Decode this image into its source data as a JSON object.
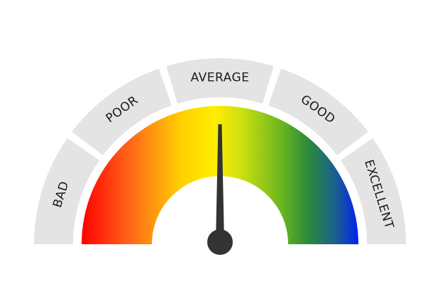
{
  "gauge": {
    "segments": [
      {
        "key": "bad",
        "label": "BAD"
      },
      {
        "key": "poor",
        "label": "POOR"
      },
      {
        "key": "average",
        "label": "AVERAGE"
      },
      {
        "key": "good",
        "label": "GOOD"
      },
      {
        "key": "excellent",
        "label": "EXCELLENT"
      }
    ],
    "needle_level": 0.5,
    "colors": {
      "segment_fill": "#e4e4e4",
      "needle": "#333333",
      "gradient": [
        "#ff0000",
        "#ff6a1a",
        "#ffd000",
        "#ffee00",
        "#ccdf10",
        "#6cb61e",
        "#2a8a3c",
        "#1b5e92",
        "#0022ee"
      ]
    }
  }
}
